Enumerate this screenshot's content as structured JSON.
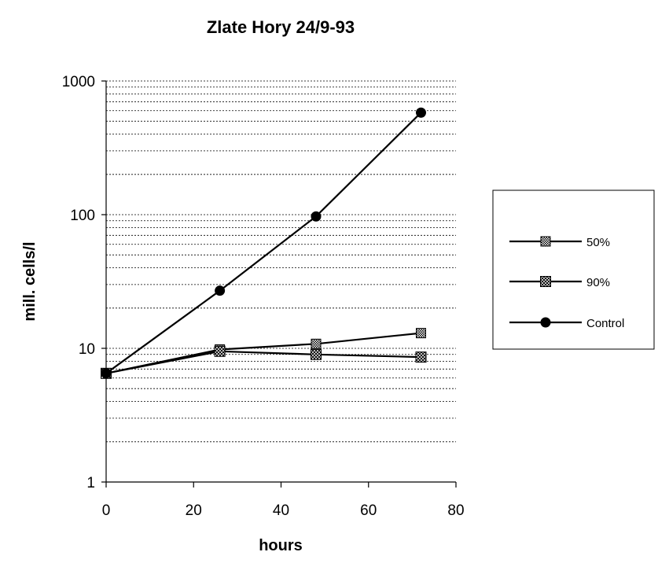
{
  "chart_data": {
    "type": "line",
    "title": "Zlate Hory  24/9-93",
    "xlabel": "hours",
    "ylabel": "mill. cells/l",
    "xlim": [
      0,
      80
    ],
    "ylim": [
      1,
      1000
    ],
    "yscale": "log",
    "xticks": [
      "0",
      "20",
      "40",
      "60",
      "80"
    ],
    "yticks": [
      "1",
      "10",
      "100",
      "1000"
    ],
    "grid": "horizontal dotted minor log lines",
    "legend_position": "right",
    "series": [
      {
        "name": "50%",
        "marker": "square-hatched",
        "x": [
          0,
          26,
          48,
          72
        ],
        "y": [
          6.5,
          9.8,
          10.8,
          13
        ]
      },
      {
        "name": "90%",
        "marker": "cross-hatched",
        "x": [
          0,
          26,
          48,
          72
        ],
        "y": [
          6.5,
          9.5,
          9.0,
          8.6
        ]
      },
      {
        "name": "Control",
        "marker": "circle-filled",
        "x": [
          0,
          26,
          48,
          72
        ],
        "y": [
          6.5,
          27,
          97,
          580
        ]
      }
    ]
  }
}
